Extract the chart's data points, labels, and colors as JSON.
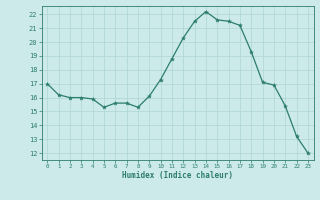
{
  "x": [
    0,
    1,
    2,
    3,
    4,
    5,
    6,
    7,
    8,
    9,
    10,
    11,
    12,
    13,
    14,
    15,
    16,
    17,
    18,
    19,
    20,
    21,
    22,
    23
  ],
  "y": [
    17,
    16.2,
    16,
    16,
    15.9,
    15.3,
    15.6,
    15.6,
    15.3,
    16.1,
    17.3,
    18.8,
    20.3,
    21.5,
    22.2,
    21.6,
    21.5,
    21.2,
    19.3,
    17.1,
    16.9,
    15.4,
    13.2,
    12
  ],
  "line_color": "#2d7d6e",
  "bg_color": "#cceaea",
  "grid_color": "#aed4d4",
  "ylim": [
    11.5,
    22.6
  ],
  "yticks": [
    12,
    13,
    14,
    15,
    16,
    17,
    18,
    19,
    20,
    21,
    22
  ],
  "xlim": [
    -0.5,
    23.5
  ],
  "xticks": [
    0,
    1,
    2,
    3,
    4,
    5,
    6,
    7,
    8,
    9,
    10,
    11,
    12,
    13,
    14,
    15,
    16,
    17,
    18,
    19,
    20,
    21,
    22,
    23
  ],
  "xlabel": "Humidex (Indice chaleur)"
}
